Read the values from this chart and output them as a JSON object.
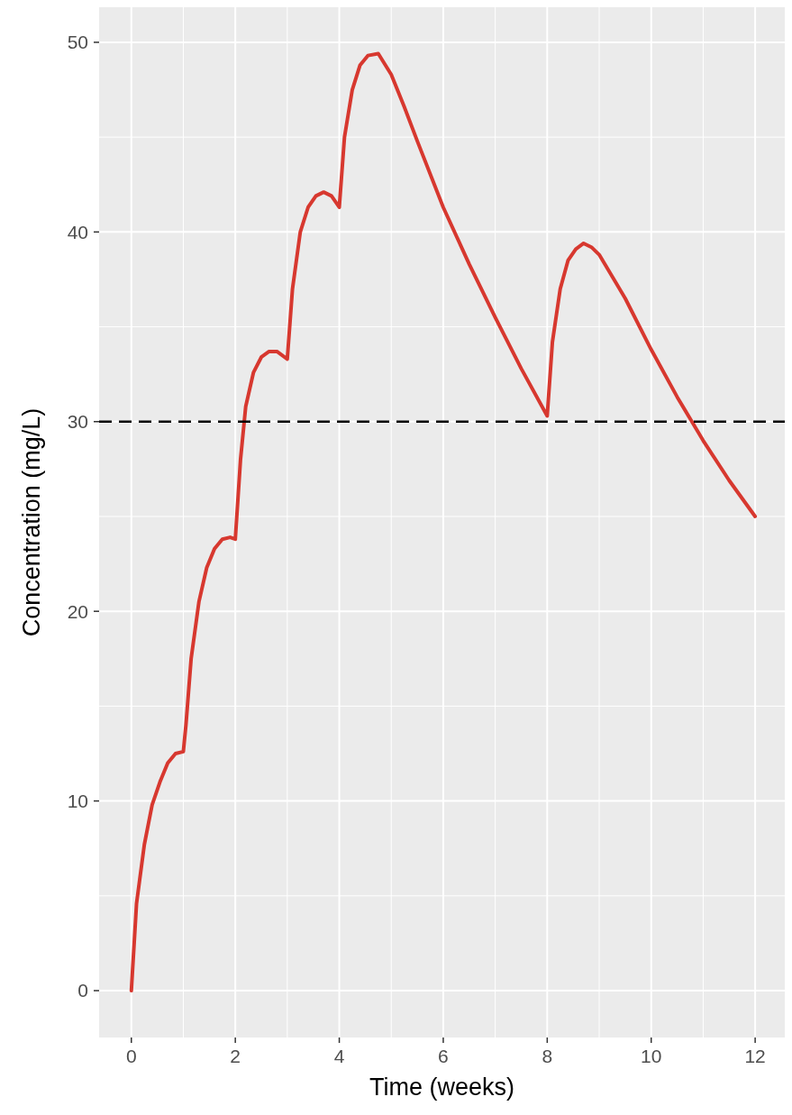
{
  "chart_data": {
    "type": "line",
    "xlabel": "Time (weeks)",
    "ylabel": "Concentration (mg/L)",
    "xlim": [
      -0.62,
      12.57
    ],
    "ylim": [
      -2.47,
      51.85
    ],
    "xticks": [
      0,
      2,
      4,
      6,
      8,
      10,
      12
    ],
    "yticks": [
      0,
      10,
      20,
      30,
      40,
      50
    ],
    "grid": true,
    "line_style": "solid",
    "series": [
      {
        "color": "#d7382f",
        "x": [
          0,
          0.1,
          0.25,
          0.4,
          0.55,
          0.7,
          0.85,
          1.0,
          1.05,
          1.15,
          1.3,
          1.45,
          1.6,
          1.75,
          1.9,
          2.0,
          2.1,
          2.2,
          2.35,
          2.5,
          2.65,
          2.8,
          3.0,
          3.1,
          3.25,
          3.4,
          3.55,
          3.7,
          3.85,
          4.0,
          4.1,
          4.25,
          4.4,
          4.55,
          4.75,
          5.0,
          5.25,
          5.5,
          6.0,
          6.5,
          7.0,
          7.5,
          8.0,
          8.1,
          8.25,
          8.4,
          8.55,
          8.7,
          8.85,
          9.0,
          9.5,
          10,
          10.5,
          11,
          11.5,
          12
        ],
        "values": [
          0,
          4.6,
          7.7,
          9.8,
          11.0,
          12.0,
          12.5,
          12.6,
          14,
          17.5,
          20.5,
          22.3,
          23.3,
          23.8,
          23.9,
          23.8,
          28,
          30.8,
          32.6,
          33.4,
          33.7,
          33.7,
          33.3,
          37,
          40,
          41.3,
          41.9,
          42.1,
          41.9,
          41.3,
          45,
          47.5,
          48.8,
          49.3,
          49.4,
          48.3,
          46.6,
          44.8,
          41.3,
          38.3,
          35.5,
          32.8,
          30.3,
          34.2,
          37.0,
          38.5,
          39.1,
          39.4,
          39.2,
          38.8,
          36.5,
          33.8,
          31.3,
          29.0,
          26.9,
          25.0
        ]
      }
    ],
    "ref_lines": [
      {
        "axis": "y",
        "value": 30,
        "color": "#000000",
        "line_style": "dashed"
      }
    ]
  }
}
